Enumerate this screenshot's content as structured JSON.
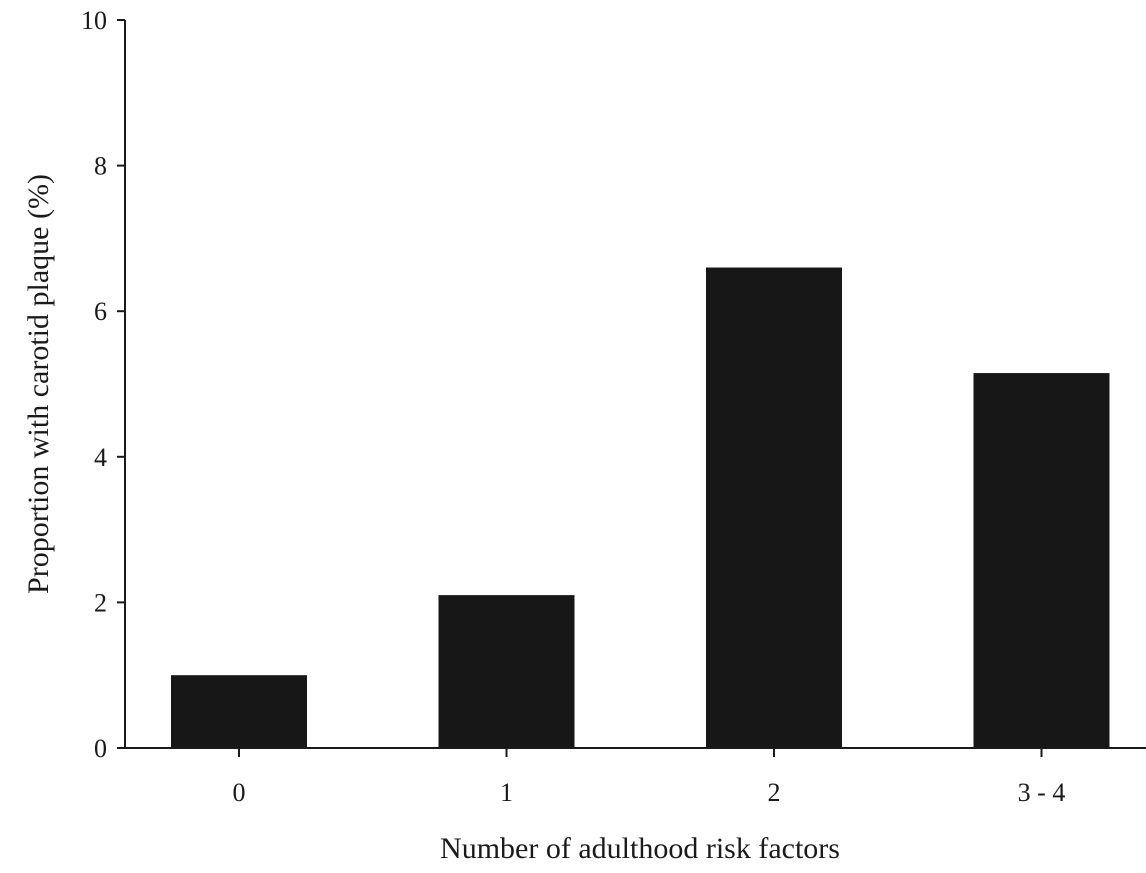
{
  "chart_data": {
    "type": "bar",
    "title": "",
    "xlabel": "Number of adulthood risk factors",
    "ylabel": "Proportion with carotid plaque (%)",
    "categories": [
      "0",
      "1",
      "2",
      "3 - 4"
    ],
    "values": [
      1.0,
      2.1,
      6.6,
      5.15
    ],
    "ylim": [
      0,
      10
    ],
    "yticks": [
      0,
      2,
      4,
      6,
      8,
      10
    ],
    "grid": false,
    "legend": null,
    "bar_color": "#171717"
  }
}
